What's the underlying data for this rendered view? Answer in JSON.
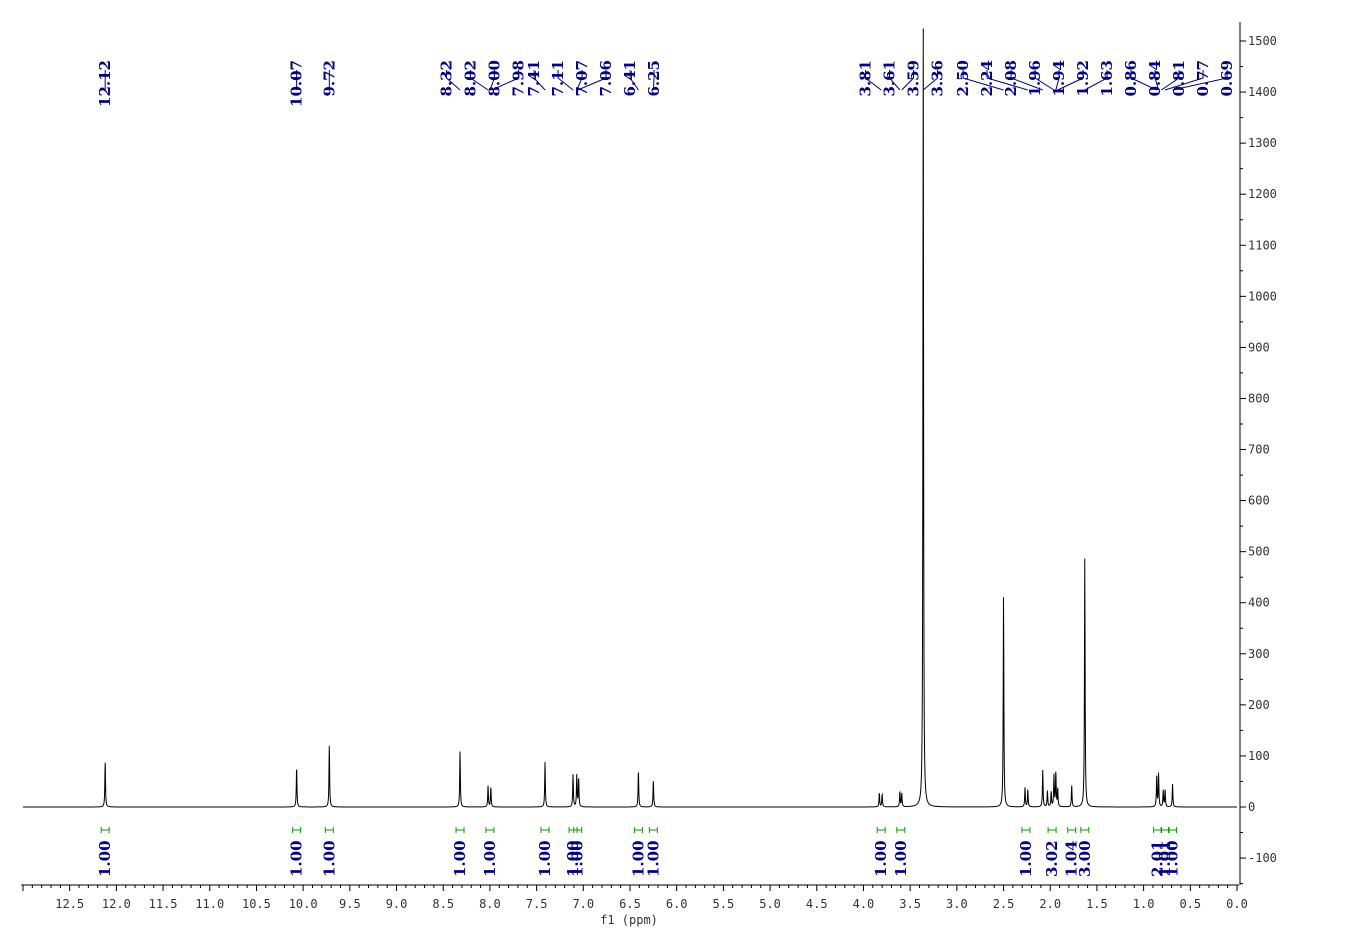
{
  "chart_data": {
    "type": "line",
    "title": "",
    "xlabel": "f1 (ppm)",
    "ylabel": "",
    "xlim": [
      13.0,
      0.0
    ],
    "ylim": [
      -150,
      1530
    ],
    "x_axis_reversed": true,
    "x_ticks": [
      {
        "v": 12.5,
        "label": "12.5"
      },
      {
        "v": 12.0,
        "label": "12.0"
      },
      {
        "v": 11.5,
        "label": "11.5"
      },
      {
        "v": 11.0,
        "label": "11.0"
      },
      {
        "v": 10.5,
        "label": "10.5"
      },
      {
        "v": 10.0,
        "label": "10.0"
      },
      {
        "v": 9.5,
        "label": "9.5"
      },
      {
        "v": 9.0,
        "label": "9.0"
      },
      {
        "v": 8.5,
        "label": "8.5"
      },
      {
        "v": 8.0,
        "label": "8.0"
      },
      {
        "v": 7.5,
        "label": "7.5"
      },
      {
        "v": 7.0,
        "label": "7.0"
      },
      {
        "v": 6.5,
        "label": "6.5"
      },
      {
        "v": 6.0,
        "label": "6.0"
      },
      {
        "v": 5.5,
        "label": "5.5"
      },
      {
        "v": 5.0,
        "label": "5.0"
      },
      {
        "v": 4.5,
        "label": "4.5"
      },
      {
        "v": 4.0,
        "label": "4.0"
      },
      {
        "v": 3.5,
        "label": "3.5"
      },
      {
        "v": 3.0,
        "label": "3.0"
      },
      {
        "v": 2.5,
        "label": "2.5"
      },
      {
        "v": 2.0,
        "label": "2.0"
      },
      {
        "v": 1.5,
        "label": "1.5"
      },
      {
        "v": 1.0,
        "label": "1.0"
      },
      {
        "v": 0.5,
        "label": "0.5"
      },
      {
        "v": 0.0,
        "label": "0.0"
      }
    ],
    "y_ticks": [
      {
        "v": -100,
        "label": "-100"
      },
      {
        "v": 0,
        "label": "0"
      },
      {
        "v": 100,
        "label": "100"
      },
      {
        "v": 200,
        "label": "200"
      },
      {
        "v": 300,
        "label": "300"
      },
      {
        "v": 400,
        "label": "400"
      },
      {
        "v": 500,
        "label": "500"
      },
      {
        "v": 600,
        "label": "600"
      },
      {
        "v": 700,
        "label": "700"
      },
      {
        "v": 800,
        "label": "800"
      },
      {
        "v": 900,
        "label": "900"
      },
      {
        "v": 1000,
        "label": "1000"
      },
      {
        "v": 1100,
        "label": "1100"
      },
      {
        "v": 1200,
        "label": "1200"
      },
      {
        "v": 1300,
        "label": "1300"
      },
      {
        "v": 1400,
        "label": "1400"
      },
      {
        "v": 1500,
        "label": "1500"
      }
    ],
    "peaks": [
      {
        "ppm": 12.12,
        "height": 90
      },
      {
        "ppm": 10.07,
        "height": 80
      },
      {
        "ppm": 9.72,
        "height": 122
      },
      {
        "ppm": 8.32,
        "height": 110
      },
      {
        "ppm": 8.02,
        "height": 42
      },
      {
        "ppm": 7.99,
        "height": 40
      },
      {
        "ppm": 7.41,
        "height": 88
      },
      {
        "ppm": 7.11,
        "height": 64
      },
      {
        "ppm": 7.07,
        "height": 62
      },
      {
        "ppm": 7.05,
        "height": 58
      },
      {
        "ppm": 6.41,
        "height": 72
      },
      {
        "ppm": 6.25,
        "height": 54
      },
      {
        "ppm": 3.83,
        "height": 28
      },
      {
        "ppm": 3.8,
        "height": 26
      },
      {
        "ppm": 3.61,
        "height": 30
      },
      {
        "ppm": 3.59,
        "height": 26
      },
      {
        "ppm": 3.36,
        "height": 1530
      },
      {
        "ppm": 2.5,
        "height": 415
      },
      {
        "ppm": 2.27,
        "height": 38
      },
      {
        "ppm": 2.24,
        "height": 34
      },
      {
        "ppm": 2.08,
        "height": 72
      },
      {
        "ppm": 2.03,
        "height": 32
      },
      {
        "ppm": 1.99,
        "height": 30
      },
      {
        "ppm": 1.96,
        "height": 62
      },
      {
        "ppm": 1.94,
        "height": 68
      },
      {
        "ppm": 1.92,
        "height": 35
      },
      {
        "ppm": 1.77,
        "height": 42
      },
      {
        "ppm": 1.63,
        "height": 490
      },
      {
        "ppm": 0.86,
        "height": 60
      },
      {
        "ppm": 0.84,
        "height": 66
      },
      {
        "ppm": 0.79,
        "height": 32
      },
      {
        "ppm": 0.77,
        "height": 34
      },
      {
        "ppm": 0.69,
        "height": 46
      }
    ],
    "peak_labels": {
      "groups": [
        {
          "labels": [
            "12.12"
          ],
          "ppms": [
            12.12
          ]
        },
        {
          "labels": [
            "10.07"
          ],
          "ppms": [
            10.07
          ]
        },
        {
          "labels": [
            "9.72"
          ],
          "ppms": [
            9.72
          ]
        },
        {
          "labels": [
            "8.32",
            "8.02",
            "8.00",
            "7.98"
          ],
          "ppms": [
            8.32,
            8.02,
            8.0,
            7.98
          ]
        },
        {
          "labels": [
            "7.41",
            "7.11",
            "7.07",
            "7.06",
            "6.41",
            "6.25"
          ],
          "ppms": [
            7.41,
            7.11,
            7.07,
            7.06,
            6.41,
            6.25
          ]
        },
        {
          "labels": [
            "3.81",
            "3.61",
            "3.59",
            "3.36"
          ],
          "ppms": [
            3.81,
            3.61,
            3.59,
            3.36
          ]
        },
        {
          "labels": [
            "2.50",
            "2.24",
            "2.08",
            "1.96",
            "1.94",
            "1.92",
            "1.63",
            "0.86",
            "0.84",
            "0.81",
            "0.77",
            "0.69"
          ],
          "ppms": [
            2.5,
            2.24,
            2.08,
            1.96,
            1.94,
            1.92,
            1.63,
            0.86,
            0.84,
            0.81,
            0.77,
            0.69
          ]
        }
      ]
    },
    "integrals": [
      {
        "ppm": 12.12,
        "value": "1.00"
      },
      {
        "ppm": 10.07,
        "value": "1.00"
      },
      {
        "ppm": 9.72,
        "value": "1.00"
      },
      {
        "ppm": 8.32,
        "value": "1.00"
      },
      {
        "ppm": 8.0,
        "value": "1.00"
      },
      {
        "ppm": 7.41,
        "value": "1.00"
      },
      {
        "ppm": 7.11,
        "value": "1.00"
      },
      {
        "ppm": 7.06,
        "value": "1.00"
      },
      {
        "ppm": 6.41,
        "value": "1.00"
      },
      {
        "ppm": 6.25,
        "value": "1.00"
      },
      {
        "ppm": 3.81,
        "value": "1.00"
      },
      {
        "ppm": 3.6,
        "value": "1.00"
      },
      {
        "ppm": 2.26,
        "value": "1.00"
      },
      {
        "ppm": 1.98,
        "value": "3.02"
      },
      {
        "ppm": 1.77,
        "value": "1.04"
      },
      {
        "ppm": 1.63,
        "value": "3.00"
      },
      {
        "ppm": 0.85,
        "value": "2.01"
      },
      {
        "ppm": 0.77,
        "value": "1.01"
      },
      {
        "ppm": 0.69,
        "value": "1.00"
      }
    ],
    "colors": {
      "spectrum": "#000000",
      "labels": "#00008b",
      "integral_marks": "#00a000",
      "axes": "#000000"
    }
  }
}
